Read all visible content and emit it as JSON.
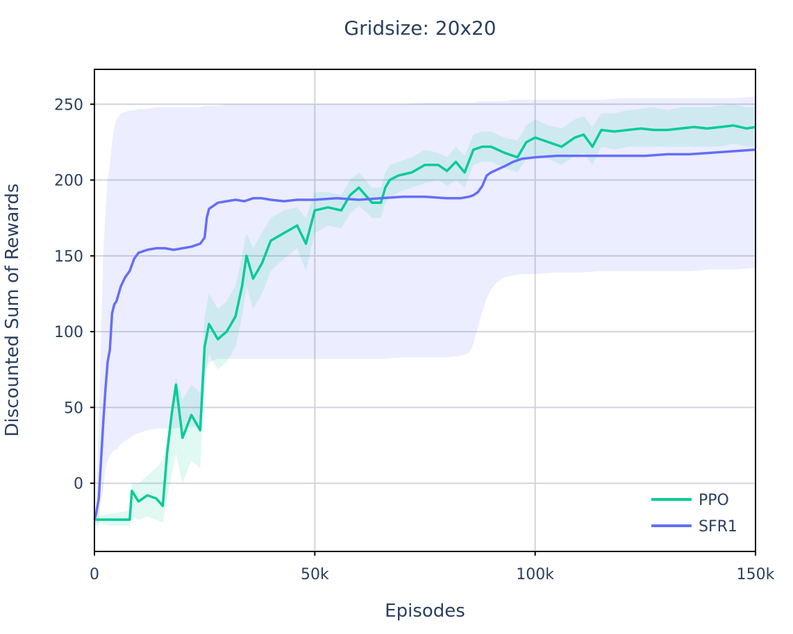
{
  "chart_data": {
    "type": "line",
    "title": "Gridsize: 20x20",
    "xlabel": "Episodes",
    "ylabel": "Discounted Sum of Rewards",
    "xlim": [
      0,
      150000
    ],
    "ylim": [
      -45,
      273
    ],
    "x_ticks": [
      0,
      50000,
      100000,
      150000
    ],
    "x_tick_labels": [
      "0",
      "50k",
      "100k",
      "150k"
    ],
    "y_ticks": [
      0,
      50,
      100,
      150,
      200,
      250
    ],
    "y_tick_labels": [
      "0",
      "50",
      "100",
      "150",
      "200",
      "250"
    ],
    "grid": true,
    "legend_position": "bottom-right",
    "series": [
      {
        "name": "PPO",
        "color": "#00cc96",
        "x": [
          0,
          4000,
          8000,
          8500,
          10000,
          12000,
          14000,
          15500,
          16500,
          17500,
          18500,
          20000,
          22000,
          24000,
          25000,
          26000,
          28000,
          30000,
          32000,
          33500,
          34500,
          36000,
          38000,
          40000,
          43000,
          46000,
          48000,
          50000,
          53000,
          56000,
          58000,
          60000,
          63000,
          65000,
          66000,
          67000,
          69000,
          72000,
          75000,
          78000,
          80000,
          82000,
          84000,
          86000,
          88000,
          90000,
          93000,
          96000,
          98000,
          100000,
          103000,
          106000,
          109000,
          111000,
          113000,
          115000,
          118000,
          121000,
          124000,
          127000,
          130000,
          133000,
          136000,
          139000,
          142000,
          145000,
          148000,
          150000
        ],
        "y": [
          -24,
          -24,
          -24,
          -5,
          -12,
          -8,
          -10,
          -15,
          20,
          45,
          65,
          30,
          45,
          35,
          90,
          105,
          95,
          100,
          110,
          130,
          150,
          135,
          145,
          160,
          165,
          170,
          158,
          180,
          182,
          180,
          190,
          195,
          185,
          185,
          195,
          200,
          203,
          205,
          210,
          210,
          206,
          212,
          205,
          220,
          222,
          222,
          218,
          215,
          225,
          228,
          225,
          222,
          228,
          230,
          222,
          233,
          232,
          233,
          234,
          233,
          233,
          234,
          235,
          234,
          235,
          236,
          234,
          235
        ],
        "band_upper": [
          -22,
          -20,
          -18,
          0,
          0,
          5,
          10,
          15,
          30,
          50,
          70,
          55,
          65,
          60,
          110,
          125,
          115,
          120,
          130,
          150,
          165,
          155,
          165,
          175,
          180,
          182,
          175,
          192,
          192,
          190,
          200,
          205,
          195,
          195,
          205,
          210,
          212,
          215,
          220,
          218,
          215,
          222,
          216,
          230,
          232,
          232,
          228,
          226,
          236,
          240,
          236,
          234,
          240,
          242,
          235,
          244,
          244,
          246,
          247,
          248,
          246,
          248,
          248,
          248,
          249,
          250,
          248,
          248
        ],
        "band_lower": [
          -26,
          -28,
          -28,
          -22,
          -24,
          -22,
          -24,
          -26,
          -10,
          5,
          20,
          0,
          15,
          10,
          70,
          85,
          75,
          80,
          90,
          110,
          130,
          115,
          125,
          140,
          148,
          155,
          140,
          165,
          170,
          168,
          178,
          183,
          175,
          175,
          185,
          188,
          192,
          195,
          198,
          200,
          196,
          200,
          195,
          210,
          212,
          212,
          208,
          205,
          214,
          216,
          214,
          210,
          216,
          218,
          210,
          222,
          220,
          222,
          222,
          222,
          222,
          222,
          222,
          222,
          222,
          224,
          222,
          222
        ]
      },
      {
        "name": "SFR1",
        "color": "#636efa",
        "x": [
          0,
          400,
          1000,
          1500,
          2000,
          2500,
          3000,
          3500,
          4000,
          4500,
          5000,
          5500,
          6000,
          7000,
          8000,
          9000,
          10000,
          11000,
          12000,
          14000,
          16000,
          18000,
          20000,
          22000,
          24000,
          25000,
          25500,
          26000,
          27000,
          28000,
          30000,
          32000,
          34000,
          36000,
          38000,
          40000,
          43000,
          46000,
          50000,
          55000,
          60000,
          65000,
          70000,
          75000,
          80000,
          83000,
          85000,
          86000,
          87000,
          88000,
          89000,
          90000,
          91500,
          93000,
          95000,
          97000,
          100000,
          105000,
          110000,
          115000,
          120000,
          125000,
          130000,
          135000,
          140000,
          145000,
          150000
        ],
        "y": [
          -24,
          -20,
          -10,
          15,
          40,
          62,
          80,
          88,
          112,
          118,
          120,
          125,
          130,
          136,
          140,
          148,
          152,
          153,
          154,
          155,
          155,
          154,
          155,
          156,
          158,
          162,
          175,
          181,
          183,
          185,
          186,
          187,
          186,
          188,
          188,
          187,
          186,
          187,
          187,
          188,
          187,
          188,
          189,
          189,
          188,
          188,
          189,
          190,
          192,
          196,
          203,
          205,
          207,
          209,
          212,
          214,
          215,
          216,
          216,
          216,
          216,
          216,
          217,
          217,
          218,
          219,
          220
        ],
        "band_upper": [
          -20,
          -15,
          40,
          100,
          150,
          180,
          200,
          210,
          225,
          235,
          240,
          242,
          244,
          245,
          246,
          246,
          247,
          247,
          247,
          248,
          248,
          248,
          248,
          248,
          248,
          249,
          249,
          249,
          249,
          249,
          250,
          250,
          250,
          250,
          250,
          250,
          250,
          250,
          250,
          250,
          250,
          250,
          250,
          251,
          251,
          251,
          251,
          251,
          252,
          252,
          252,
          252,
          252,
          252,
          253,
          253,
          253,
          253,
          253,
          253,
          254,
          254,
          254,
          254,
          254,
          254,
          255
        ],
        "band_lower": [
          -28,
          -28,
          -28,
          -10,
          -5,
          10,
          15,
          18,
          20,
          22,
          22,
          24,
          26,
          28,
          30,
          32,
          33,
          34,
          35,
          36,
          36,
          36,
          37,
          37,
          37,
          60,
          75,
          80,
          81,
          82,
          82,
          82,
          82,
          82,
          82,
          82,
          82,
          82,
          82,
          82,
          82,
          82,
          83,
          83,
          83,
          84,
          86,
          92,
          103,
          113,
          122,
          128,
          133,
          136,
          137,
          138,
          138,
          139,
          139,
          140,
          140,
          140,
          140,
          140,
          141,
          141,
          142
        ]
      }
    ]
  }
}
